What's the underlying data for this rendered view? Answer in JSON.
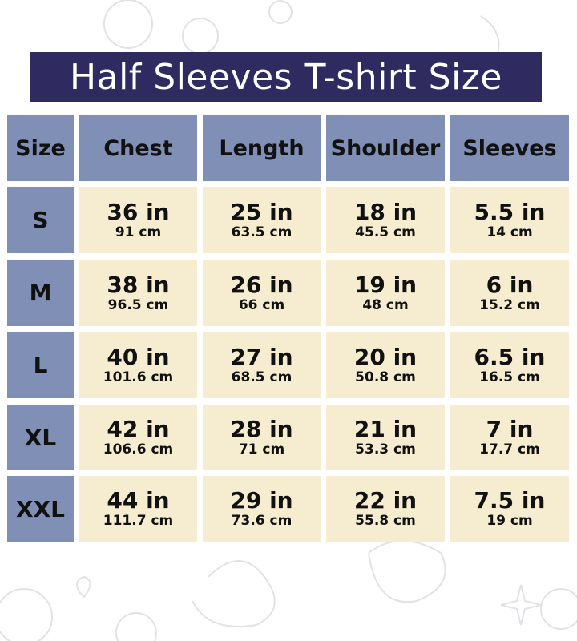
{
  "title": "Half Sleeves T-shirt Size",
  "colors": {
    "title_bg": "#2f2b61",
    "header_bg": "#7f8fb6",
    "cell_bg": "#f6ecd0"
  },
  "table": {
    "headers": [
      "Size",
      "Chest",
      "Length",
      "Shoulder",
      "Sleeves"
    ],
    "rows": [
      {
        "size": "S",
        "cells": [
          {
            "in": "36 in",
            "cm": "91 cm"
          },
          {
            "in": "25 in",
            "cm": "63.5 cm"
          },
          {
            "in": "18 in",
            "cm": "45.5 cm"
          },
          {
            "in": "5.5 in",
            "cm": "14 cm"
          }
        ]
      },
      {
        "size": "M",
        "cells": [
          {
            "in": "38 in",
            "cm": "96.5 cm"
          },
          {
            "in": "26 in",
            "cm": "66 cm"
          },
          {
            "in": "19 in",
            "cm": "48 cm"
          },
          {
            "in": "6 in",
            "cm": "15.2 cm"
          }
        ]
      },
      {
        "size": "L",
        "cells": [
          {
            "in": "40 in",
            "cm": "101.6 cm"
          },
          {
            "in": "27 in",
            "cm": "68.5 cm"
          },
          {
            "in": "20 in",
            "cm": "50.8 cm"
          },
          {
            "in": "6.5 in",
            "cm": "16.5 cm"
          }
        ]
      },
      {
        "size": "XL",
        "cells": [
          {
            "in": "42 in",
            "cm": "106.6 cm"
          },
          {
            "in": "28 in",
            "cm": "71 cm"
          },
          {
            "in": "21 in",
            "cm": "53.3 cm"
          },
          {
            "in": "7 in",
            "cm": "17.7 cm"
          }
        ]
      },
      {
        "size": "XXL",
        "cells": [
          {
            "in": "44 in",
            "cm": "111.7 cm"
          },
          {
            "in": "29 in",
            "cm": "73.6 cm"
          },
          {
            "in": "22 in",
            "cm": "55.8 cm"
          },
          {
            "in": "7.5 in",
            "cm": "19 cm"
          }
        ]
      }
    ]
  }
}
